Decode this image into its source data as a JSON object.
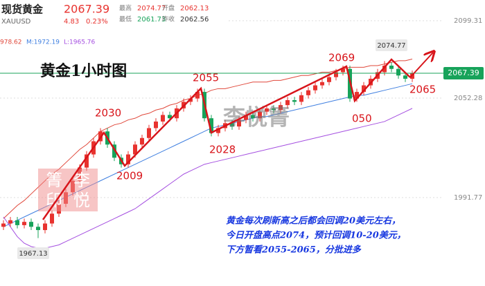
{
  "chart_data": {
    "type": "candlestick",
    "title": "现货黄金",
    "subtitle": "XAUUSD",
    "quote": {
      "price": 2067.39,
      "change": 4.83,
      "change_pct": "0.23%",
      "stats": [
        {
          "label": "最高",
          "value": 2074.77
        },
        {
          "label": "开盘",
          "value": 2062.13
        },
        {
          "label": "最低",
          "value": 2061.73
        },
        {
          "label": "昨收",
          "value": 2062.56
        }
      ]
    },
    "legend_values": [
      "978.62",
      "M:1972.19",
      "L:1965.76"
    ],
    "heading": "黄金1小时图",
    "watermark": "李悦箐",
    "seal": [
      "箐",
      "李",
      "印",
      "悦"
    ],
    "annotations": [
      "2030",
      "2009",
      "2055",
      "2028",
      "2069",
      "050",
      "2065",
      "2074.77",
      "1967.13"
    ],
    "note": [
      "黄金每次刷新高之后都会回调20美元左右，",
      "今日开盘高点2074，预计回调10-20美元，",
      "下方暂看2055-2065，分批进多"
    ],
    "up_color": "#e8322e",
    "down_color": "#17a35a",
    "open": [
      1974,
      1976,
      1978,
      1975,
      1977,
      1974,
      1972,
      1976,
      1982,
      1988,
      1995,
      2002,
      2010,
      2018,
      2026,
      2032,
      2024,
      2016,
      2012,
      2018,
      2024,
      2028,
      2034,
      2038,
      2042,
      2040,
      2046,
      2050,
      2052,
      2056,
      2040,
      2031,
      2034,
      2037,
      2035,
      2039,
      2042,
      2040,
      2044,
      2046,
      2045,
      2048,
      2051,
      2050,
      2054,
      2057,
      2060,
      2062,
      2065,
      2068,
      2070,
      2052,
      2056,
      2060,
      2064,
      2068,
      2072,
      2070,
      2066,
      2064
    ],
    "high": [
      1978,
      1980,
      1980,
      1979,
      1979,
      1976,
      1978,
      1984,
      1990,
      1997,
      2004,
      2012,
      2020,
      2028,
      2034,
      2034,
      2026,
      2018,
      2020,
      2026,
      2030,
      2036,
      2040,
      2044,
      2044,
      2048,
      2052,
      2054,
      2058,
      2058,
      2042,
      2036,
      2039,
      2039,
      2041,
      2044,
      2044,
      2046,
      2048,
      2048,
      2050,
      2053,
      2053,
      2056,
      2059,
      2062,
      2064,
      2067,
      2070,
      2072,
      2072,
      2058,
      2062,
      2066,
      2070,
      2074.77,
      2074,
      2072,
      2068,
      2069
    ],
    "low": [
      1972,
      1974,
      1973,
      1973,
      1972,
      1967.13,
      1970,
      1974,
      1980,
      1986,
      1993,
      2000,
      2008,
      2016,
      2024,
      2022,
      2014,
      2010,
      2010,
      2016,
      2022,
      2026,
      2032,
      2036,
      2038,
      2038,
      2044,
      2048,
      2050,
      2038,
      2029,
      2029,
      2032,
      2033,
      2033,
      2037,
      2038,
      2038,
      2042,
      2043,
      2043,
      2046,
      2048,
      2048,
      2052,
      2055,
      2058,
      2060,
      2063,
      2066,
      2050,
      2050,
      2054,
      2058,
      2062,
      2066,
      2068,
      2064,
      2062,
      2062
    ],
    "close": [
      1976,
      1978,
      1975,
      1977,
      1974,
      1972,
      1976,
      1982,
      1988,
      1995,
      2002,
      2010,
      2018,
      2026,
      2032,
      2024,
      2016,
      2012,
      2018,
      2024,
      2028,
      2034,
      2038,
      2042,
      2040,
      2046,
      2050,
      2052,
      2056,
      2040,
      2031,
      2034,
      2037,
      2035,
      2039,
      2042,
      2040,
      2044,
      2046,
      2045,
      2048,
      2051,
      2050,
      2054,
      2057,
      2060,
      2062,
      2065,
      2068,
      2070,
      2052,
      2056,
      2060,
      2064,
      2068,
      2072,
      2070,
      2066,
      2064,
      2067.39
    ],
    "bands": [
      {
        "color": "#e0473a",
        "values": [
          1979,
          1983,
          1987,
          1990,
          1994,
          1998,
          2002,
          2006,
          2009,
          2013,
          2017,
          2021,
          2024,
          2028,
          2032,
          2034,
          2036,
          2037,
          2039,
          2040,
          2042,
          2043,
          2045,
          2046,
          2048,
          2049,
          2051,
          2052,
          2054,
          2055,
          2057,
          2058,
          2058,
          2059,
          2060,
          2061,
          2062,
          2062,
          2062,
          2063,
          2063,
          2064,
          2065,
          2066,
          2066,
          2067,
          2068,
          2068,
          2069,
          2070,
          2071,
          2071,
          2071,
          2072,
          2072,
          2073,
          2074,
          2075,
          2075,
          2076
        ]
      },
      {
        "color": "#3f7fe0",
        "values": [
          1974,
          1976,
          1978,
          1980,
          1982,
          1984,
          1986,
          1988,
          1990,
          1992,
          1994,
          1996,
          1998,
          2000,
          2002,
          2004,
          2006,
          2008,
          2010,
          2012,
          2014,
          2016,
          2018,
          2020,
          2022,
          2024,
          2026,
          2028,
          2030,
          2032,
          2034,
          2035,
          2036,
          2037,
          2038,
          2039,
          2040,
          2041,
          2041,
          2042,
          2043,
          2044,
          2045,
          2046,
          2047,
          2048,
          2049,
          2050,
          2051,
          2052,
          2053,
          2054,
          2054,
          2055,
          2056,
          2057,
          2058,
          2059,
          2060,
          2061
        ]
      },
      {
        "color": "#a44ee0",
        "values": [
          1980,
          1974,
          1968,
          1964,
          1962,
          1961,
          1961,
          1962,
          1963,
          1965,
          1967,
          1969,
          1971,
          1973,
          1975,
          1977,
          1979,
          1981,
          1983,
          1985,
          1988,
          1991,
          1994,
          1997,
          2000,
          2003,
          2006,
          2008,
          2010,
          2012,
          2013,
          2014,
          2015,
          2016,
          2017,
          2018,
          2019,
          2020,
          2021,
          2022,
          2023,
          2024,
          2025,
          2026,
          2027,
          2028,
          2029,
          2030,
          2031,
          2032,
          2033,
          2034,
          2035,
          2036,
          2037,
          2038,
          2040,
          2042,
          2044,
          2046
        ]
      }
    ],
    "price_line": 2067.39,
    "price_line_color": "#17a35a",
    "ylim": [
      1938,
      2103.5
    ],
    "yticks": [
      2099.31,
      2052.28,
      1991.77
    ],
    "grid": true
  }
}
